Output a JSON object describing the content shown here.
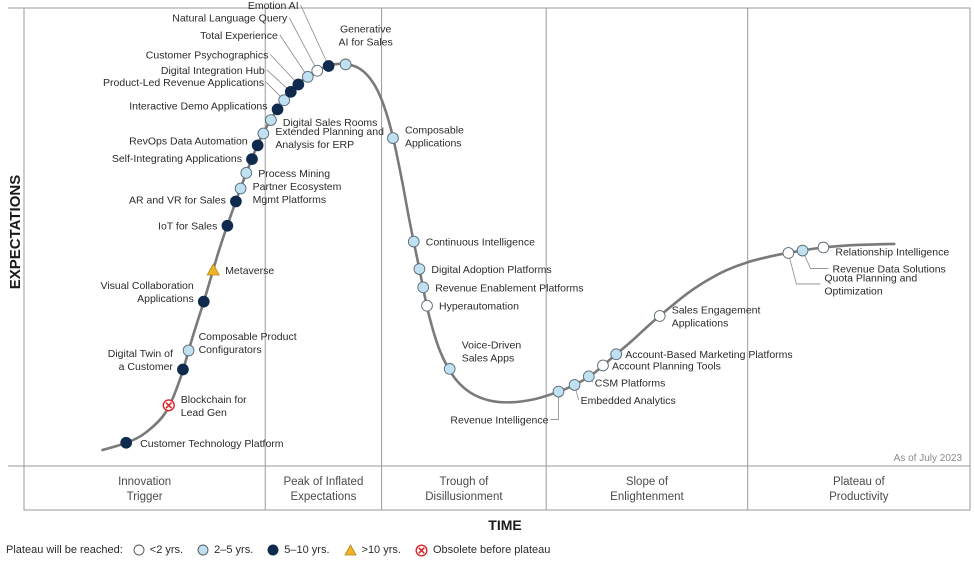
{
  "chart_data": {
    "type": "hype-cycle",
    "x_axis_label": "TIME",
    "y_axis_label": "EXPECTATIONS",
    "as_of": "As of July 2023",
    "phases": [
      {
        "name": "Innovation Trigger",
        "lines": [
          "Innovation",
          "Trigger"
        ]
      },
      {
        "name": "Peak of Inflated Expectations",
        "lines": [
          "Peak of Inflated",
          "Expectations"
        ]
      },
      {
        "name": "Trough of Disillusionment",
        "lines": [
          "Trough of",
          "Disillusionment"
        ]
      },
      {
        "name": "Slope of Enlightenment",
        "lines": [
          "Slope of",
          "Enlightenment"
        ]
      },
      {
        "name": "Plateau of Productivity",
        "lines": [
          "Plateau of",
          "Productivity"
        ]
      }
    ],
    "legend": {
      "title": "Plateau will be reached:",
      "items": [
        {
          "key": "lt2",
          "label": "<2 yrs."
        },
        {
          "key": "2to5",
          "label": "2–5 yrs."
        },
        {
          "key": "5to10",
          "label": "5–10 yrs."
        },
        {
          "key": "gt10",
          "label": ">10 yrs."
        },
        {
          "key": "obsolete",
          "label": "Obsolete before plateau"
        }
      ]
    },
    "colors": {
      "lt2": "#ffffff",
      "2to5": "#bfe1f2",
      "5to10": "#0f2a4d",
      "gt10": "#f0b323",
      "obsolete": "#d9262b",
      "curve": "#7a7a7a",
      "axis": "#9a9a9a"
    },
    "technologies": [
      {
        "name": "Customer Technology Platform",
        "t": 0.108,
        "cat": "5to10",
        "label": "Customer Technology Platform",
        "side": "right"
      },
      {
        "name": "Blockchain for Lead Gen",
        "t": 0.153,
        "cat": "obsolete",
        "label": "Blockchain for\nLead Gen",
        "side": "right"
      },
      {
        "name": "Digital Twin of a Customer",
        "t": 0.168,
        "cat": "5to10",
        "label": "Digital Twin of\na Customer",
        "side": "left"
      },
      {
        "name": "Composable Product Configurators",
        "t": 0.174,
        "cat": "2to5",
        "label": "Composable Product\nConfigurators",
        "side": "right"
      },
      {
        "name": "Visual Collaboration Applications",
        "t": 0.19,
        "cat": "5to10",
        "label": "Visual Collaboration\nApplications",
        "side": "left"
      },
      {
        "name": "Metaverse",
        "t": 0.2,
        "cat": "gt10",
        "label": "Metaverse",
        "side": "right"
      },
      {
        "name": "IoT for Sales",
        "t": 0.215,
        "cat": "5to10",
        "label": "IoT for Sales",
        "side": "left"
      },
      {
        "name": "AR and VR for Sales",
        "t": 0.224,
        "cat": "5to10",
        "label": "AR and VR for Sales",
        "side": "left"
      },
      {
        "name": "Partner Ecosystem Mgmt Platforms",
        "t": 0.229,
        "cat": "2to5",
        "label": "Partner Ecosystem\nMgmt Platforms",
        "side": "right"
      },
      {
        "name": "Process Mining",
        "t": 0.235,
        "cat": "2to5",
        "label": "Process Mining",
        "side": "right"
      },
      {
        "name": "Self-Integrating Applications",
        "t": 0.241,
        "cat": "5to10",
        "label": "Self-Integrating Applications",
        "side": "left"
      },
      {
        "name": "RevOps Data Automation",
        "t": 0.247,
        "cat": "5to10",
        "label": "RevOps Data Automation",
        "side": "left"
      },
      {
        "name": "Extended Planning and Analysis for ERP",
        "t": 0.253,
        "cat": "2to5",
        "label": "Extended Planning and\nAnalysis for ERP",
        "side": "right"
      },
      {
        "name": "Digital Sales Rooms",
        "t": 0.261,
        "cat": "2to5",
        "label": "Digital Sales Rooms",
        "side": "right"
      },
      {
        "name": "Interactive Demo Applications",
        "t": 0.268,
        "cat": "5to10",
        "label": "Interactive Demo Applications",
        "side": "left"
      },
      {
        "name": "Product-Led Revenue Applications",
        "t": 0.275,
        "cat": "2to5",
        "label": "Product-Led Revenue Applications",
        "side": "left"
      },
      {
        "name": "Digital Integration Hub",
        "t": 0.282,
        "cat": "5to10",
        "label": "Digital Integration Hub",
        "side": "left"
      },
      {
        "name": "Customer Psychographics",
        "t": 0.29,
        "cat": "5to10",
        "label": "Customer Psychographics",
        "side": "left"
      },
      {
        "name": "Total Experience",
        "t": 0.3,
        "cat": "2to5",
        "label": "Total Experience",
        "side": "left"
      },
      {
        "name": "Natural Language Query",
        "t": 0.31,
        "cat": "lt2",
        "label": "Natural Language Query",
        "side": "left"
      },
      {
        "name": "Emotion AI",
        "t": 0.322,
        "cat": "5to10",
        "label": "Emotion AI",
        "side": "left"
      },
      {
        "name": "Generative AI for Sales",
        "t": 0.34,
        "cat": "2to5",
        "label": "Generative\nAI for Sales",
        "side": "above"
      },
      {
        "name": "Composable Applications",
        "t": 0.39,
        "cat": "2to5",
        "label": "Composable\nApplications",
        "side": "right"
      },
      {
        "name": "Continuous Intelligence",
        "t": 0.412,
        "cat": "2to5",
        "label": "Continuous Intelligence",
        "side": "right"
      },
      {
        "name": "Digital Adoption Platforms",
        "t": 0.418,
        "cat": "2to5",
        "label": "Digital Adoption Platforms",
        "side": "right"
      },
      {
        "name": "Revenue Enablement Platforms",
        "t": 0.422,
        "cat": "2to5",
        "label": "Revenue Enablement Platforms",
        "side": "right"
      },
      {
        "name": "Hyperautomation",
        "t": 0.426,
        "cat": "lt2",
        "label": "Hyperautomation",
        "side": "right"
      },
      {
        "name": "Voice-Driven Sales Apps",
        "t": 0.45,
        "cat": "2to5",
        "label": "Voice-Driven\nSales Apps",
        "side": "right"
      },
      {
        "name": "Revenue Intelligence",
        "t": 0.565,
        "cat": "2to5",
        "label": "Revenue Intelligence",
        "side": "below-left"
      },
      {
        "name": "Embedded Analytics",
        "t": 0.582,
        "cat": "2to5",
        "label": "Embedded Analytics",
        "side": "right"
      },
      {
        "name": "CSM Platforms",
        "t": 0.597,
        "cat": "2to5",
        "label": "CSM Platforms",
        "side": "right"
      },
      {
        "name": "Account Planning Tools",
        "t": 0.612,
        "cat": "lt2",
        "label": "Account Planning Tools",
        "side": "right"
      },
      {
        "name": "Account-Based Marketing Platforms",
        "t": 0.626,
        "cat": "2to5",
        "label": "Account-Based Marketing Platforms",
        "side": "right"
      },
      {
        "name": "Sales Engagement Applications",
        "t": 0.672,
        "cat": "lt2",
        "label": "Sales Engagement\nApplications",
        "side": "right"
      },
      {
        "name": "Quota Planning and Optimization",
        "t": 0.808,
        "cat": "lt2",
        "label": "Quota Planning and\nOptimization",
        "side": "right"
      },
      {
        "name": "Revenue Data Solutions",
        "t": 0.823,
        "cat": "2to5",
        "label": "Revenue Data Solutions",
        "side": "right"
      },
      {
        "name": "Relationship Intelligence",
        "t": 0.845,
        "cat": "lt2",
        "label": "Relationship Intelligence",
        "side": "right"
      }
    ]
  }
}
